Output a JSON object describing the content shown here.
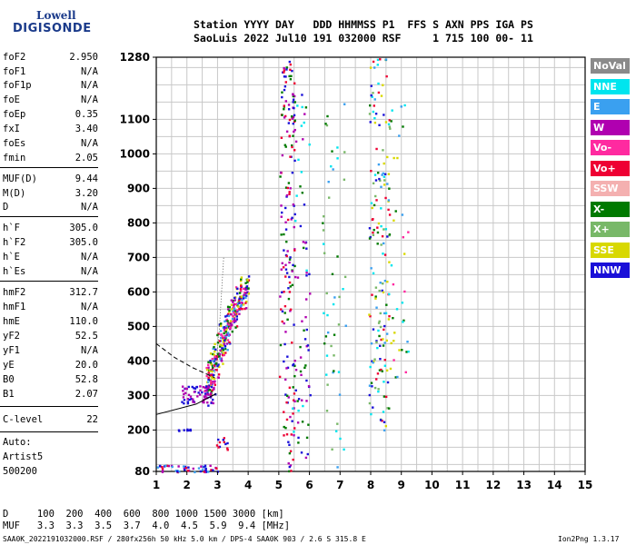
{
  "logo": {
    "line1": "Lowell",
    "line2": "DIGISONDE"
  },
  "header": {
    "line1": "Station YYYY DAY   DDD HHMMSS P1  FFS S AXN PPS IGA PS",
    "line2": "SaoLuis 2022 Jul10 191 032000 RSF     1 715 100 00- 11"
  },
  "params": [
    {
      "label": "foF2",
      "value": "2.950"
    },
    {
      "label": "foF1",
      "value": "N/A"
    },
    {
      "label": "foF1p",
      "value": "N/A"
    },
    {
      "label": "foE",
      "value": "N/A"
    },
    {
      "label": "foEp",
      "value": "0.35"
    },
    {
      "label": "fxI",
      "value": "3.40"
    },
    {
      "label": "foEs",
      "value": "N/A"
    },
    {
      "label": "fmin",
      "value": "2.05"
    },
    {
      "label": "MUF(D)",
      "value": "9.44"
    },
    {
      "label": "M(D)",
      "value": "3.20"
    },
    {
      "label": "D",
      "value": "N/A"
    },
    {
      "label": "h`F",
      "value": "305.0"
    },
    {
      "label": "h`F2",
      "value": "305.0"
    },
    {
      "label": "h`E",
      "value": "N/A"
    },
    {
      "label": "h`Es",
      "value": "N/A"
    },
    {
      "label": "hmF2",
      "value": "312.7"
    },
    {
      "label": "hmF1",
      "value": "N/A"
    },
    {
      "label": "hmE",
      "value": "110.0"
    },
    {
      "label": "yF2",
      "value": "52.5"
    },
    {
      "label": "yF1",
      "value": "N/A"
    },
    {
      "label": "yE",
      "value": "20.0"
    },
    {
      "label": "B0",
      "value": "52.8"
    },
    {
      "label": "B1",
      "value": "2.07"
    },
    {
      "label": "C-level",
      "value": "22"
    }
  ],
  "auto": {
    "line1": "Auto:",
    "line2": "Artist5",
    "line3": "500200"
  },
  "legend": [
    {
      "label": "NoVal",
      "color": "#8a8a8a"
    },
    {
      "label": "NNE",
      "color": "#00e5ee"
    },
    {
      "label": "E",
      "color": "#3aa0f0"
    },
    {
      "label": "W",
      "color": "#b000b0"
    },
    {
      "label": "Vo-",
      "color": "#ff2aa0"
    },
    {
      "label": "Vo+",
      "color": "#ee0033"
    },
    {
      "label": "SSW",
      "color": "#f4b0b0"
    },
    {
      "label": "X-",
      "color": "#007a00"
    },
    {
      "label": "X+",
      "color": "#78b868"
    },
    {
      "label": "SSE",
      "color": "#d8d800"
    },
    {
      "label": "NNW",
      "color": "#1a10d8"
    }
  ],
  "footer": {
    "d_row": "D     100  200  400  600  800 1000 1500 3000 [km]",
    "muf_row": "MUF   3.3  3.3  3.5  3.7  4.0  4.5  5.9  9.4 [MHz]",
    "file_line": "SAA0K_2022191032000.RSF / 280fx256h 50 kHz 5.0 km / DPS-4 SAA0K 903 / 2.6 S 315.8 E",
    "version": "Ion2Png 1.3.17"
  },
  "chart_data": {
    "type": "scatter",
    "xlim": [
      1,
      15
    ],
    "ylim": [
      80,
      1280
    ],
    "x_ticks": [
      "1",
      "2",
      "3",
      "4",
      "5",
      "6",
      "7",
      "8",
      "9",
      "10",
      "11",
      "12",
      "13",
      "14",
      "15"
    ],
    "y_ticks": [
      "80",
      "200",
      "300",
      "400",
      "500",
      "600",
      "700",
      "800",
      "900",
      "1000",
      "1100",
      "1280"
    ],
    "grid": true,
    "xlabel": "",
    "ylabel": "",
    "trace_solid": [
      [
        1.0,
        245
      ],
      [
        2.3,
        275
      ],
      [
        2.95,
        305
      ]
    ],
    "trace_dashed": [
      [
        1.0,
        450
      ],
      [
        1.6,
        410
      ],
      [
        2.2,
        380
      ],
      [
        2.9,
        352
      ]
    ],
    "trace_dotted": [
      [
        2.9,
        350
      ],
      [
        3.05,
        480
      ],
      [
        3.2,
        700
      ]
    ],
    "clusters": [
      {
        "x": [
          2.6,
          3.9
        ],
        "y": [
          300,
          620
        ],
        "colors": [
          "#b000b0",
          "#ff2aa0",
          "#007a00",
          "#1a10d8",
          "#ee0033",
          "#d8d800",
          "#3aa0f0"
        ],
        "n": 340
      },
      {
        "x": [
          1.8,
          2.9
        ],
        "y": [
          280,
          330
        ],
        "colors": [
          "#1a10d8",
          "#b000b0"
        ],
        "n": 60
      },
      {
        "x": [
          1.0,
          3.0
        ],
        "y": [
          80,
          100
        ],
        "colors": [
          "#1a10d8",
          "#ee0033",
          "#b000b0",
          "#3aa0f0"
        ],
        "n": 50
      },
      {
        "x": [
          2.9,
          3.3
        ],
        "y": [
          140,
          190
        ],
        "colors": [
          "#1a10d8",
          "#ee0033"
        ],
        "n": 12
      },
      {
        "x": [
          5.0,
          5.5
        ],
        "y": [
          80,
          1280
        ],
        "colors": [
          "#1a10d8",
          "#b000b0",
          "#ee0033",
          "#007a00"
        ],
        "n": 170
      },
      {
        "x": [
          5.4,
          6.0
        ],
        "y": [
          80,
          1200
        ],
        "colors": [
          "#1a10d8",
          "#007a00",
          "#00e5ee",
          "#b000b0"
        ],
        "n": 80
      },
      {
        "x": [
          6.4,
          7.2
        ],
        "y": [
          90,
          1150
        ],
        "colors": [
          "#3aa0f0",
          "#00e5ee",
          "#007a00",
          "#78b868"
        ],
        "n": 50
      },
      {
        "x": [
          7.9,
          8.6
        ],
        "y": [
          200,
          1280
        ],
        "colors": [
          "#00e5ee",
          "#3aa0f0",
          "#1a10d8",
          "#007a00",
          "#d8d800",
          "#78b868",
          "#ee0033"
        ],
        "n": 170
      },
      {
        "x": [
          8.6,
          9.2
        ],
        "y": [
          350,
          1150
        ],
        "colors": [
          "#00e5ee",
          "#007a00",
          "#d8d800",
          "#ff2aa0",
          "#3aa0f0"
        ],
        "n": 35
      },
      {
        "x": [
          1.7,
          2.1
        ],
        "y": [
          200,
          205
        ],
        "colors": [
          "#1a10d8"
        ],
        "n": 8
      }
    ]
  }
}
